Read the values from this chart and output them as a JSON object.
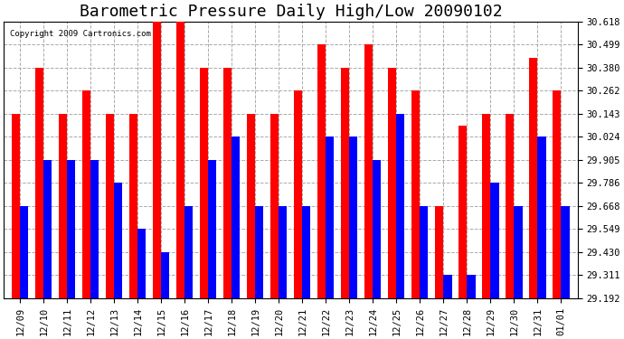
{
  "title": "Barometric Pressure Daily High/Low 20090102",
  "copyright_text": "Copyright 2009 Cartronics.com",
  "categories": [
    "12/09",
    "12/10",
    "12/11",
    "12/12",
    "12/13",
    "12/14",
    "12/15",
    "12/16",
    "12/17",
    "12/18",
    "12/19",
    "12/20",
    "12/21",
    "12/22",
    "12/23",
    "12/24",
    "12/25",
    "12/26",
    "12/27",
    "12/28",
    "12/29",
    "12/30",
    "12/31",
    "01/01"
  ],
  "highs": [
    30.143,
    30.38,
    30.143,
    30.262,
    30.143,
    30.143,
    30.618,
    30.618,
    30.38,
    30.38,
    30.143,
    30.143,
    30.262,
    30.499,
    30.38,
    30.499,
    30.38,
    30.262,
    29.668,
    30.08,
    30.143,
    30.143,
    30.43,
    30.262
  ],
  "lows": [
    29.668,
    29.905,
    29.905,
    29.905,
    29.786,
    29.549,
    29.43,
    29.668,
    29.905,
    30.024,
    29.668,
    29.668,
    29.668,
    30.024,
    30.024,
    29.905,
    30.143,
    29.668,
    29.311,
    29.311,
    29.786,
    29.668,
    30.024,
    29.668
  ],
  "bar_width": 0.35,
  "high_color": "#ff0000",
  "low_color": "#0000ff",
  "background_color": "#ffffff",
  "grid_color": "#aaaaaa",
  "ylabel_right_ticks": [
    29.192,
    29.311,
    29.43,
    29.549,
    29.668,
    29.786,
    29.905,
    30.024,
    30.143,
    30.262,
    30.38,
    30.499,
    30.618
  ],
  "ylim": [
    29.192,
    30.618
  ],
  "title_fontsize": 13,
  "tick_fontsize": 7.5
}
